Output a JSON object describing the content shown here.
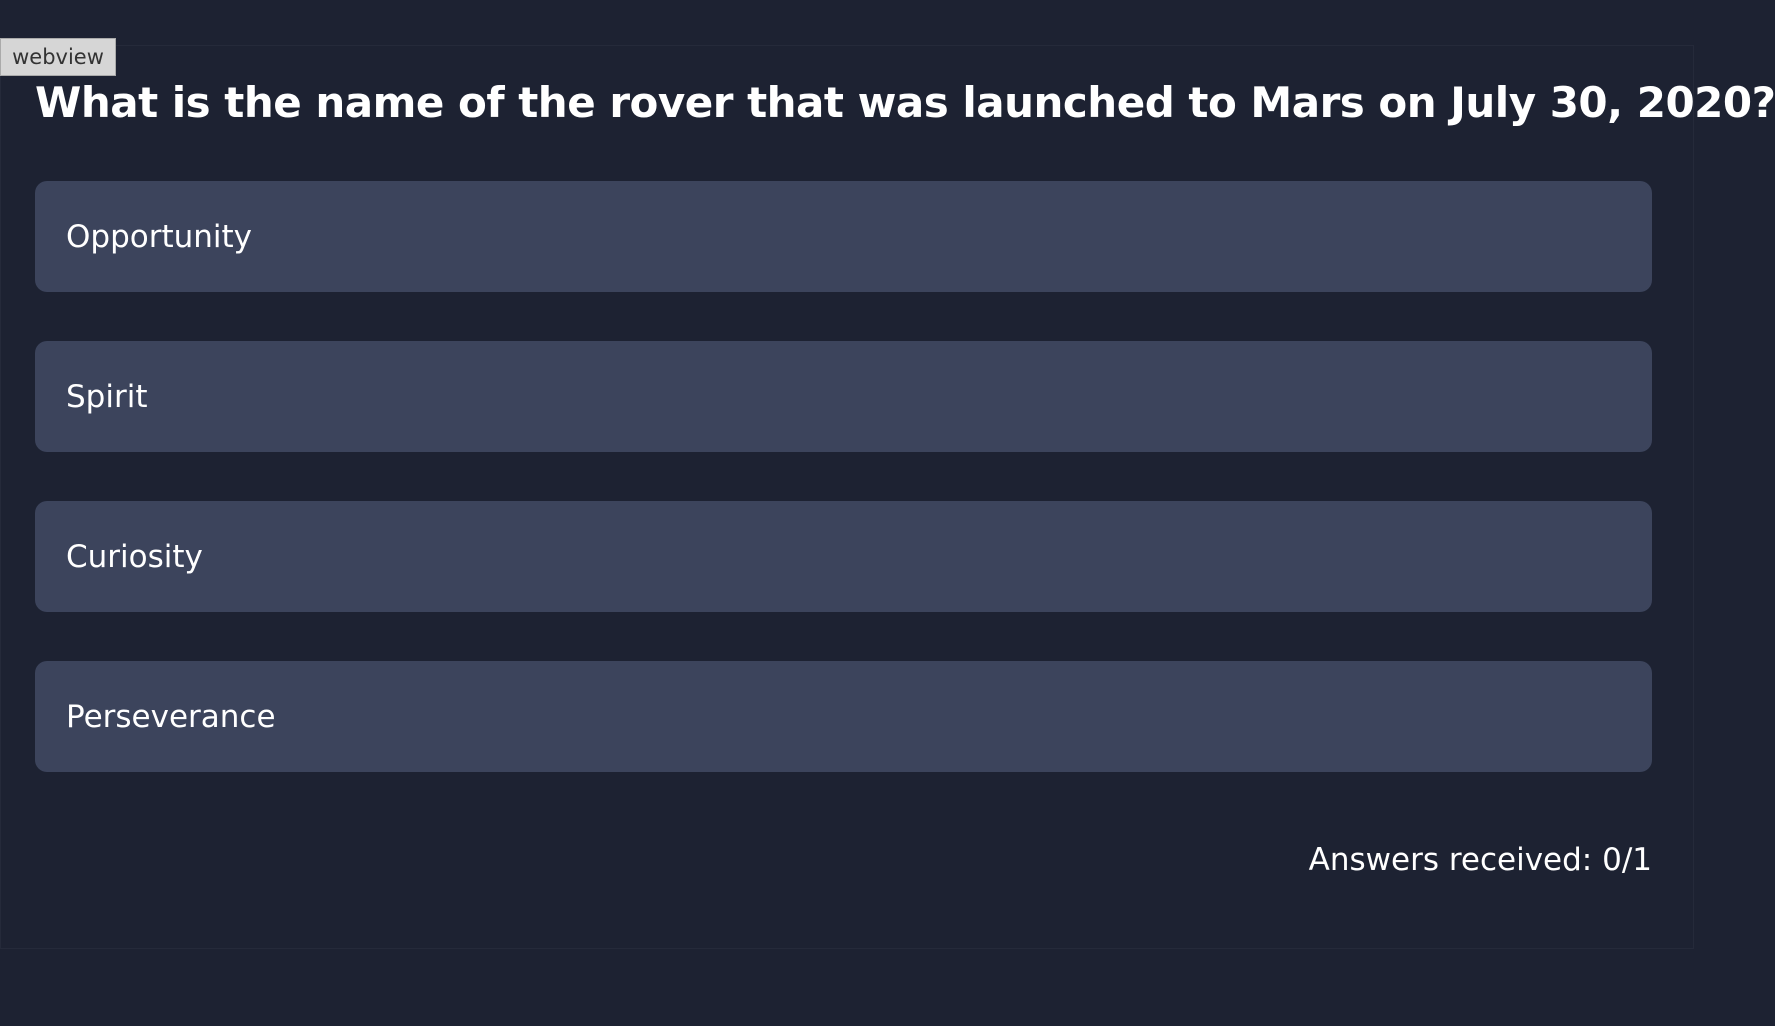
{
  "webview_label": "webview",
  "question": "What is the name of the rover that was launched to Mars on July 30, 2020?",
  "options": [
    "Opportunity",
    "Spirit",
    "Curiosity",
    "Perseverance"
  ],
  "answers_status": "Answers received: 0/1"
}
